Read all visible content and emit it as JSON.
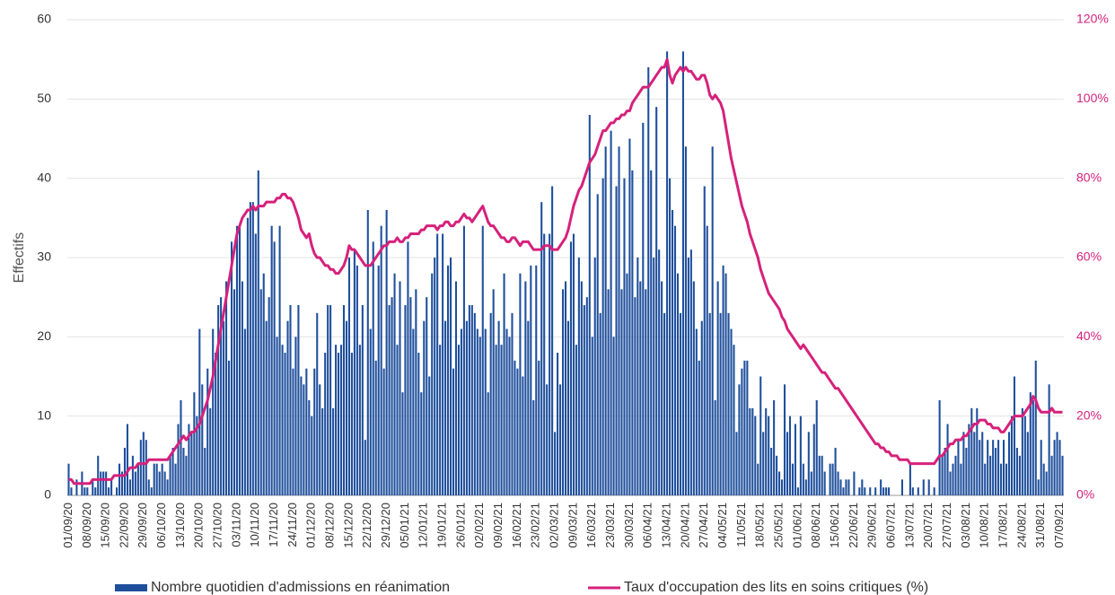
{
  "chart_data": {
    "type": "bar_line",
    "y_label": "Effectifs",
    "ylim": [
      0,
      60
    ],
    "yticks": [
      0,
      10,
      20,
      30,
      40,
      50,
      60
    ],
    "y2lim": [
      0,
      120
    ],
    "y2ticks": [
      {
        "value": 0,
        "label": "0%"
      },
      {
        "value": 20,
        "label": "20%"
      },
      {
        "value": 40,
        "label": "40%"
      },
      {
        "value": 60,
        "label": "60%"
      },
      {
        "value": 80,
        "label": "80%"
      },
      {
        "value": 100,
        "label": "100%"
      },
      {
        "value": 120,
        "label": "120%"
      }
    ],
    "grid": true,
    "legend": "bottom",
    "categories": [
      "01/09/20",
      null,
      null,
      null,
      null,
      null,
      null,
      "08/09/20",
      null,
      null,
      null,
      null,
      null,
      null,
      "15/09/20",
      null,
      null,
      null,
      null,
      null,
      null,
      "22/09/20",
      null,
      null,
      null,
      null,
      null,
      null,
      "29/09/20",
      null,
      null,
      null,
      null,
      null,
      null,
      "06/10/20",
      null,
      null,
      null,
      null,
      null,
      null,
      "13/10/20",
      null,
      null,
      null,
      null,
      null,
      null,
      "20/10/20",
      null,
      null,
      null,
      null,
      null,
      null,
      "27/10/20",
      null,
      null,
      null,
      null,
      null,
      null,
      "03/11/20",
      null,
      null,
      null,
      null,
      null,
      null,
      "10/11/20",
      null,
      null,
      null,
      null,
      null,
      null,
      "17/11/20",
      null,
      null,
      null,
      null,
      null,
      null,
      "24/11/20",
      null,
      null,
      null,
      null,
      null,
      null,
      "01/12/20",
      null,
      null,
      null,
      null,
      null,
      null,
      "08/12/20",
      null,
      null,
      null,
      null,
      null,
      null,
      "15/12/20",
      null,
      null,
      null,
      null,
      null,
      null,
      "22/12/20",
      null,
      null,
      null,
      null,
      null,
      null,
      "29/12/20",
      null,
      null,
      null,
      null,
      null,
      null,
      "05/01/21",
      null,
      null,
      null,
      null,
      null,
      null,
      "12/01/21",
      null,
      null,
      null,
      null,
      null,
      null,
      "19/01/21",
      null,
      null,
      null,
      null,
      null,
      null,
      "26/01/21",
      null,
      null,
      null,
      null,
      null,
      null,
      "02/02/21",
      null,
      null,
      null,
      null,
      null,
      null,
      "09/02/21",
      null,
      null,
      null,
      null,
      null,
      null,
      "16/02/21",
      null,
      null,
      null,
      null,
      null,
      null,
      "23/02/21",
      null,
      null,
      null,
      null,
      null,
      null,
      "02/03/21",
      null,
      null,
      null,
      null,
      null,
      null,
      "09/03/21",
      null,
      null,
      null,
      null,
      null,
      null,
      "16/03/21",
      null,
      null,
      null,
      null,
      null,
      null,
      "23/03/21",
      null,
      null,
      null,
      null,
      null,
      null,
      "30/03/21",
      null,
      null,
      null,
      null,
      null,
      null,
      "06/04/21",
      null,
      null,
      null,
      null,
      null,
      null,
      "13/04/21",
      null,
      null,
      null,
      null,
      null,
      null,
      "20/04/21",
      null,
      null,
      null,
      null,
      null,
      null,
      "27/04/21",
      null,
      null,
      null,
      null,
      null,
      null,
      "04/05/21",
      null,
      null,
      null,
      null,
      null,
      null,
      "11/05/21",
      null,
      null,
      null,
      null,
      null,
      null,
      "18/05/21",
      null,
      null,
      null,
      null,
      null,
      null,
      "25/05/21",
      null,
      null,
      null,
      null,
      null,
      null,
      "01/06/21",
      null,
      null,
      null,
      null,
      null,
      null,
      "08/06/21",
      null,
      null,
      null,
      null,
      null,
      null,
      "15/06/21",
      null,
      null,
      null,
      null,
      null,
      null,
      "22/06/21",
      null,
      null,
      null,
      null,
      null,
      null,
      "29/06/21",
      null,
      null,
      null,
      null,
      null,
      null,
      "06/07/21",
      null,
      null,
      null,
      null,
      null,
      null,
      "13/07/21",
      null,
      null,
      null,
      null,
      null,
      null,
      "20/07/21",
      null,
      null,
      null,
      null,
      null,
      null,
      "27/07/21",
      null,
      null,
      null,
      null,
      null,
      null,
      "03/08/21",
      null,
      null,
      null,
      null,
      null,
      null,
      "10/08/21",
      null,
      null,
      null,
      null,
      null,
      null,
      "17/08/21",
      null,
      null,
      null,
      null,
      null,
      null,
      "24/08/21",
      null,
      null,
      null,
      null,
      null,
      null,
      "31/08/21",
      null,
      null,
      null,
      null,
      null,
      null,
      "07/09/21",
      null
    ],
    "series": [
      {
        "name": "Nombre quotidien d'admissions en réanimation",
        "type": "bar",
        "color": "#1f4f9c",
        "values": [
          4,
          1,
          0,
          2,
          0,
          3,
          1,
          1,
          0,
          2,
          1,
          5,
          3,
          3,
          3,
          1,
          2,
          0,
          1,
          4,
          3,
          6,
          9,
          2,
          5,
          3,
          4,
          7,
          8,
          7,
          2,
          1,
          4,
          4,
          3,
          4,
          3,
          2,
          5,
          6,
          4,
          9,
          12,
          6,
          5,
          9,
          8,
          13,
          10,
          21,
          14,
          6,
          16,
          11,
          21,
          18,
          24,
          25,
          22,
          27,
          17,
          32,
          26,
          34,
          34,
          27,
          21,
          35,
          37,
          37,
          33,
          41,
          26,
          28,
          22,
          25,
          34,
          32,
          20,
          34,
          19,
          18,
          22,
          24,
          16,
          20,
          24,
          15,
          14,
          16,
          12,
          10,
          16,
          23,
          14,
          11,
          18,
          24,
          24,
          11,
          19,
          18,
          19,
          24,
          22,
          30,
          18,
          31,
          29,
          19,
          24,
          7,
          36,
          21,
          32,
          17,
          29,
          34,
          16,
          36,
          24,
          25,
          28,
          19,
          27,
          13,
          24,
          32,
          25,
          21,
          26,
          18,
          13,
          22,
          25,
          15,
          28,
          30,
          33,
          19,
          33,
          22,
          29,
          30,
          16,
          27,
          19,
          21,
          34,
          22,
          24,
          24,
          23,
          21,
          20,
          34,
          21,
          13,
          23,
          26,
          19,
          22,
          19,
          28,
          21,
          20,
          23,
          17,
          16,
          28,
          15,
          27,
          22,
          29,
          12,
          29,
          17,
          37,
          33,
          14,
          33,
          39,
          8,
          18,
          14,
          26,
          27,
          22,
          32,
          33,
          19,
          30,
          27,
          24,
          25,
          48,
          20,
          30,
          38,
          23,
          40,
          44,
          26,
          46,
          20,
          39,
          44,
          26,
          40,
          28,
          45,
          41,
          25,
          30,
          27,
          47,
          26,
          54,
          41,
          30,
          49,
          31,
          27,
          23,
          56,
          40,
          36,
          34,
          28,
          23,
          56,
          44,
          30,
          31,
          27,
          21,
          17,
          22,
          39,
          34,
          23,
          44,
          12,
          27,
          23,
          29,
          28,
          23,
          21,
          19,
          8,
          14,
          16,
          17,
          17,
          11,
          11,
          10,
          4,
          15,
          8,
          11,
          10,
          6,
          12,
          5,
          3,
          2,
          14,
          8,
          10,
          4,
          9,
          1,
          10,
          4,
          2,
          8,
          3,
          9,
          12,
          5,
          5,
          3,
          0,
          4,
          4,
          6,
          3,
          2,
          1,
          2,
          2,
          0,
          3,
          0,
          1,
          2,
          1,
          0,
          1,
          0,
          1,
          0,
          2,
          1,
          1,
          1,
          0,
          0,
          0,
          0,
          2,
          0,
          0,
          4,
          1,
          0,
          1,
          0,
          2,
          0,
          2,
          0,
          1,
          0,
          12,
          5,
          6,
          9,
          3,
          4,
          5,
          7,
          4,
          8,
          6,
          9,
          11,
          8,
          11,
          7,
          8,
          4,
          7,
          5,
          7,
          6,
          7,
          4,
          7,
          4,
          8,
          10,
          15,
          6,
          5,
          11,
          10,
          8,
          13,
          12,
          17,
          2,
          7,
          4,
          3,
          14,
          5,
          7,
          8,
          7,
          5
        ]
      },
      {
        "name": "Taux d'occupation des lits en soins critiques (%)",
        "type": "line",
        "axis": "y2",
        "color": "#d6217b",
        "values": [
          4,
          4,
          3,
          3,
          3,
          3,
          3,
          3,
          3,
          4,
          4,
          4,
          4,
          4,
          4,
          4,
          4,
          5,
          5,
          5,
          5,
          5,
          6,
          7,
          7,
          7,
          8,
          8,
          8,
          8,
          9,
          9,
          9,
          9,
          9,
          9,
          9,
          9,
          10,
          11,
          12,
          13,
          14,
          15,
          14,
          15,
          16,
          16,
          17,
          18,
          20,
          22,
          24,
          27,
          30,
          34,
          38,
          42,
          46,
          50,
          54,
          58,
          62,
          66,
          68,
          70,
          71,
          72,
          72,
          73,
          72,
          73,
          73,
          73,
          74,
          74,
          74,
          74,
          75,
          75,
          76,
          76,
          75,
          75,
          74,
          72,
          70,
          67,
          66,
          65,
          66,
          63,
          61,
          60,
          60,
          59,
          58,
          58,
          57,
          57,
          56,
          56,
          57,
          58,
          60,
          63,
          62,
          62,
          61,
          60,
          59,
          58,
          58,
          58,
          59,
          60,
          61,
          62,
          63,
          63,
          64,
          64,
          64,
          65,
          64,
          64,
          65,
          65,
          66,
          66,
          66,
          66,
          67,
          67,
          68,
          68,
          68,
          68,
          67,
          68,
          68,
          69,
          69,
          68,
          68,
          69,
          69,
          70,
          71,
          70,
          70,
          69,
          70,
          71,
          72,
          73,
          71,
          69,
          68,
          68,
          67,
          66,
          65,
          65,
          64,
          64,
          65,
          65,
          64,
          63,
          64,
          64,
          64,
          63,
          62,
          62,
          62,
          62,
          63,
          63,
          63,
          62,
          62,
          62,
          63,
          64,
          65,
          67,
          70,
          73,
          75,
          77,
          78,
          80,
          82,
          84,
          85,
          86,
          88,
          90,
          92,
          92,
          93,
          94,
          94,
          95,
          95,
          96,
          96,
          97,
          97,
          99,
          100,
          101,
          102,
          103,
          103,
          103,
          104,
          105,
          106,
          107,
          108,
          108,
          110,
          106,
          104,
          106,
          107,
          108,
          107,
          108,
          107,
          107,
          106,
          105,
          105,
          106,
          106,
          104,
          101,
          100,
          101,
          100,
          99,
          97,
          93,
          89,
          85,
          82,
          79,
          76,
          73,
          71,
          69,
          66,
          64,
          62,
          60,
          57,
          55,
          53,
          51,
          50,
          49,
          48,
          47,
          45,
          44,
          42,
          41,
          40,
          39,
          38,
          37,
          38,
          37,
          36,
          35,
          34,
          33,
          32,
          31,
          31,
          30,
          29,
          28,
          27,
          27,
          26,
          25,
          24,
          23,
          22,
          21,
          20,
          19,
          18,
          17,
          16,
          15,
          14,
          13,
          13,
          12,
          12,
          11,
          11,
          10,
          10,
          10,
          9,
          9,
          9,
          9,
          8,
          8,
          8,
          8,
          8,
          8,
          8,
          8,
          8,
          8,
          9,
          10,
          10,
          11,
          12,
          13,
          13,
          14,
          14,
          14,
          15,
          15,
          16,
          17,
          18,
          18,
          19,
          19,
          19,
          18,
          18,
          17,
          17,
          17,
          16,
          16,
          17,
          18,
          19,
          20,
          20,
          20,
          20,
          21,
          22,
          23,
          25,
          24,
          22,
          21,
          21,
          21,
          21,
          22,
          21,
          21,
          21,
          21
        ]
      }
    ]
  }
}
